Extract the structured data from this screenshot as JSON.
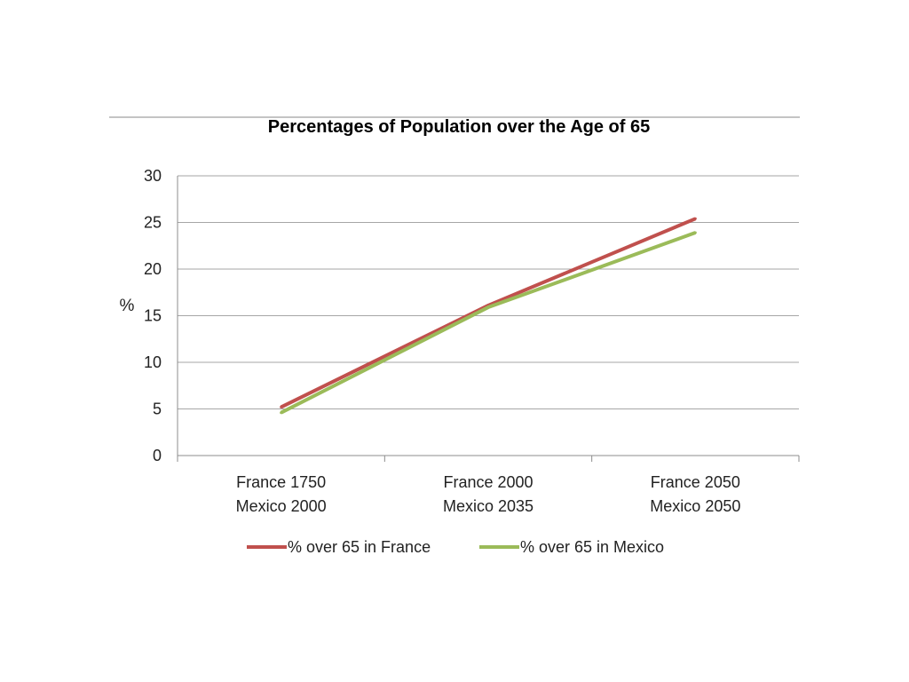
{
  "chart_data": {
    "type": "line",
    "title": "Percentages of Population over the Age of 65",
    "ylabel": "%",
    "xlabel": "",
    "ylim": [
      0,
      30
    ],
    "yticks": [
      0,
      5,
      10,
      15,
      20,
      25,
      30
    ],
    "categories": [
      [
        "France 1750",
        "Mexico 2000"
      ],
      [
        "France 2000",
        "Mexico 2035"
      ],
      [
        "France 2050",
        "Mexico 2050"
      ]
    ],
    "series": [
      {
        "name": "% over 65 in France",
        "color": "#c0504d",
        "values": [
          5.2,
          16.1,
          25.4
        ]
      },
      {
        "name": "% over 65 in Mexico",
        "color": "#9bbb59",
        "values": [
          4.6,
          15.9,
          23.9
        ]
      }
    ],
    "grid": true,
    "legend_position": "bottom"
  }
}
